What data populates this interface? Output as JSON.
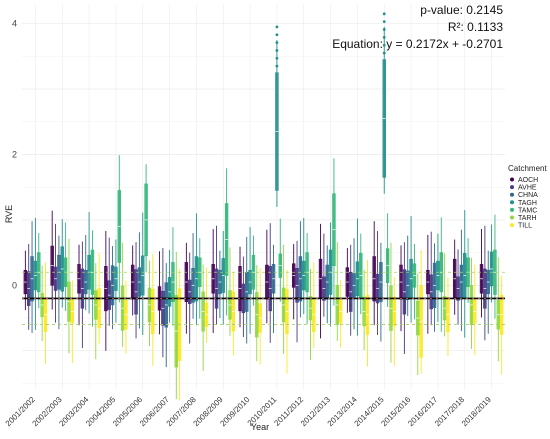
{
  "chart_data": {
    "type": "box",
    "xlabel": "Year",
    "ylabel": "RVE",
    "ylim": [
      -1.6,
      4.3
    ],
    "y_ticks": [
      0,
      2,
      4
    ],
    "grid": true,
    "legend_position": "right",
    "legend_title": "Catchment",
    "categories": [
      "2001/2002",
      "2002/2003",
      "2003/2004",
      "2004/2005",
      "2005/2006",
      "2006/2007",
      "2007/2008",
      "2008/2009",
      "2009/2010",
      "2010/2011",
      "2011/2012",
      "2012/2013",
      "2013/2014",
      "2014/2015",
      "2015/2016",
      "2016/2017",
      "2017/2018",
      "2018/2019"
    ],
    "series": [
      {
        "name": "AOCH",
        "color": "#440154",
        "values": [
          0.05,
          0.3,
          0.1,
          -0.05,
          0.05,
          -0.2,
          0.05,
          0.1,
          -0.05,
          0.05,
          0.15,
          0.1,
          0.05,
          0.1,
          0.05,
          0.05,
          0.1,
          0.1
        ]
      },
      {
        "name": "AVHE",
        "color": "#443983",
        "values": [
          -0.05,
          0.1,
          -0.05,
          -0.15,
          -0.1,
          -0.35,
          -0.1,
          -0.05,
          -0.2,
          -0.05,
          0.0,
          -0.05,
          -0.1,
          -0.05,
          -0.1,
          -0.1,
          -0.05,
          -0.05
        ]
      },
      {
        "name": "CHNA",
        "color": "#31688e",
        "values": [
          0.1,
          0.2,
          0.05,
          0.0,
          0.05,
          -0.3,
          0.0,
          0.05,
          -0.1,
          0.1,
          0.1,
          0.05,
          0.0,
          0.05,
          0.0,
          0.0,
          0.05,
          0.05
        ]
      },
      {
        "name": "TAGH",
        "color": "#21918c",
        "values": [
          0.15,
          0.25,
          0.2,
          0.1,
          0.15,
          -0.1,
          0.1,
          0.15,
          0.05,
          2.35,
          0.15,
          0.2,
          0.1,
          2.55,
          0.1,
          0.15,
          0.15,
          0.25
        ]
      },
      {
        "name": "TAMC",
        "color": "#35b779",
        "values": [
          0.2,
          0.2,
          0.2,
          0.9,
          1.0,
          0.05,
          0.2,
          0.7,
          0.2,
          0.3,
          0.2,
          0.85,
          0.15,
          0.3,
          0.15,
          0.2,
          0.2,
          0.2
        ]
      },
      {
        "name": "TARH",
        "color": "#90d743",
        "values": [
          -0.3,
          -0.25,
          -0.3,
          -0.35,
          -0.3,
          -0.7,
          -0.4,
          -0.3,
          -0.45,
          -0.3,
          -0.35,
          -0.3,
          -0.4,
          -0.35,
          -0.5,
          -0.35,
          -0.3,
          -0.45
        ]
      },
      {
        "name": "TILL",
        "color": "#fde725",
        "values": [
          -0.45,
          -0.4,
          -0.35,
          -0.45,
          -0.4,
          -0.6,
          -0.45,
          -0.4,
          -0.5,
          -0.4,
          -0.45,
          -0.4,
          -0.45,
          -0.4,
          -0.55,
          -0.45,
          -0.4,
          -0.45
        ]
      }
    ],
    "annotations": [
      "p-value: 0.2145",
      "R²: 0.1133",
      "Equation: y = 0.2172x + -0.2701"
    ]
  }
}
